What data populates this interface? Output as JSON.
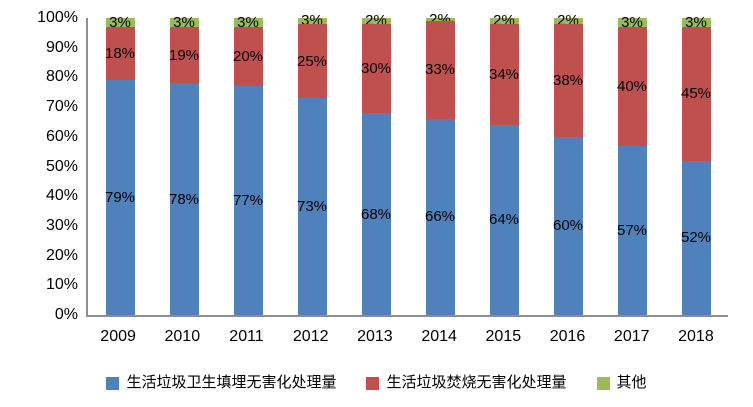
{
  "chart_data": {
    "type": "bar",
    "stacked": true,
    "percent_stacked": true,
    "title": "",
    "xlabel": "",
    "ylabel": "",
    "categories": [
      "2009",
      "2010",
      "2011",
      "2012",
      "2013",
      "2014",
      "2015",
      "2016",
      "2017",
      "2018"
    ],
    "series": [
      {
        "key": "landfill",
        "name": "生活垃圾卫生填埋无害化处理量",
        "color": "#4F81BD",
        "values": [
          79,
          78,
          77,
          73,
          68,
          66,
          64,
          60,
          57,
          52
        ],
        "labels": [
          "79%",
          "78%",
          "77%",
          "73%",
          "68%",
          "66%",
          "64%",
          "60%",
          "57%",
          "52%"
        ]
      },
      {
        "key": "incineration",
        "name": "生活垃圾焚烧无害化处理量",
        "color": "#C0504D",
        "values": [
          18,
          19,
          20,
          25,
          30,
          33,
          34,
          38,
          40,
          45
        ],
        "labels": [
          "18%",
          "19%",
          "20%",
          "25%",
          "30%",
          "33%",
          "34%",
          "38%",
          "40%",
          "45%"
        ]
      },
      {
        "key": "other",
        "name": "其他",
        "color": "#9BBB59",
        "values": [
          3,
          3,
          3,
          3,
          2,
          2,
          2,
          2,
          3,
          3
        ],
        "labels": [
          "3%",
          "3%",
          "3%",
          "3%",
          "2%",
          "2%",
          "2%",
          "2%",
          "3%",
          "3%"
        ]
      }
    ],
    "y_ticks": [
      "100%",
      "90%",
      "80%",
      "70%",
      "60%",
      "50%",
      "40%",
      "30%",
      "20%",
      "10%",
      "0%"
    ],
    "ylim": [
      0,
      100
    ],
    "grid": false,
    "legend_position": "bottom"
  },
  "colors": {
    "axis": "#8E8E8E",
    "label_text": "#000000",
    "background": "#FFFFFF"
  }
}
